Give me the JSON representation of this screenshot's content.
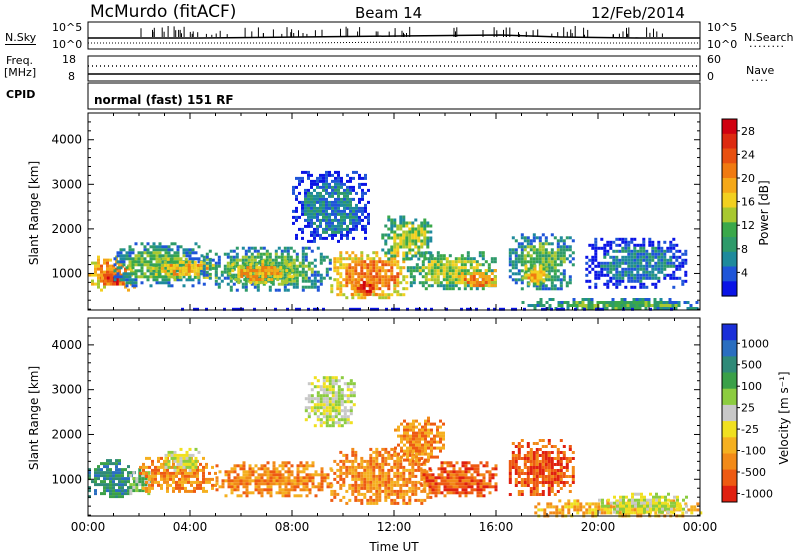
{
  "header": {
    "station": "McMurdo (fitACF)",
    "beam": "Beam 14",
    "date": "12/Feb/2014"
  },
  "strips": {
    "nsky_label": "N.Sky",
    "nsky_ticks": [
      "10^5",
      "10^0"
    ],
    "nsearch_label": "N.Search",
    "nsearch_ticks": [
      "10^5",
      "10^0"
    ],
    "freq_label": "Freq.",
    "freq_unit": "[MHz]",
    "freq_ticks": [
      "18",
      "8"
    ],
    "nave_label": "Nave",
    "nave_ticks": [
      "60",
      "0"
    ],
    "cpid_label": "CPID",
    "cpid_value": "normal (fast) 151 RF"
  },
  "chart_data": [
    {
      "type": "heatmap",
      "name": "power-panel",
      "ylabel": "Slant Range [km]",
      "ylim": [
        180,
        4600
      ],
      "yticks": [
        "1000",
        "2000",
        "3000",
        "4000"
      ],
      "ytick_values": [
        1000,
        2000,
        3000,
        4000
      ],
      "xlim": [
        0,
        24
      ],
      "colorbar": {
        "label": "Power [dB]",
        "ticks": [
          "4",
          "8",
          "12",
          "16",
          "20",
          "24",
          "28"
        ],
        "tick_values": [
          4,
          8,
          12,
          16,
          20,
          24,
          28
        ],
        "range": [
          0,
          30
        ],
        "colors": [
          "#0a14e6",
          "#1f55d8",
          "#1e8a9c",
          "#2e9a6a",
          "#3aa84a",
          "#a8c830",
          "#f2d020",
          "#f5a818",
          "#f07a10",
          "#e85010",
          "#dd2a10",
          "#d00010"
        ]
      },
      "regions": [
        {
          "t0": 0.0,
          "t1": 1.8,
          "r0": 650,
          "r1": 1400,
          "level": 22
        },
        {
          "t0": 0.5,
          "t1": 1.4,
          "r0": 750,
          "r1": 1000,
          "level": 28
        },
        {
          "t0": 1.0,
          "t1": 4.5,
          "r0": 700,
          "r1": 1700,
          "level": 10
        },
        {
          "t0": 2.5,
          "t1": 5.0,
          "r0": 900,
          "r1": 1350,
          "level": 18
        },
        {
          "t0": 4.5,
          "t1": 9.5,
          "r0": 650,
          "r1": 1600,
          "level": 12
        },
        {
          "t0": 5.5,
          "t1": 8.0,
          "r0": 800,
          "r1": 1300,
          "level": 20
        },
        {
          "t0": 8.0,
          "t1": 11.0,
          "r0": 1700,
          "r1": 3300,
          "level": 6
        },
        {
          "t0": 9.5,
          "t1": 12.5,
          "r0": 450,
          "r1": 1500,
          "level": 22
        },
        {
          "t0": 10.3,
          "t1": 11.3,
          "r0": 550,
          "r1": 900,
          "level": 28
        },
        {
          "t0": 11.5,
          "t1": 13.5,
          "r0": 1300,
          "r1": 2300,
          "level": 14
        },
        {
          "t0": 12.5,
          "t1": 16.0,
          "r0": 650,
          "r1": 1500,
          "level": 14
        },
        {
          "t0": 14.5,
          "t1": 16.0,
          "r0": 700,
          "r1": 1100,
          "level": 22
        },
        {
          "t0": 16.5,
          "t1": 19.0,
          "r0": 650,
          "r1": 1900,
          "level": 10
        },
        {
          "t0": 17.0,
          "t1": 18.0,
          "r0": 750,
          "r1": 1200,
          "level": 20
        },
        {
          "t0": 17.0,
          "t1": 24.0,
          "r0": 190,
          "r1": 450,
          "level": 12
        },
        {
          "t0": 19.5,
          "t1": 23.5,
          "r0": 700,
          "r1": 1800,
          "level": 6
        },
        {
          "t0": 0.0,
          "t1": 24.0,
          "r0": 180,
          "r1": 230,
          "level": 4
        }
      ]
    },
    {
      "type": "heatmap",
      "name": "velocity-panel",
      "ylabel": "Slant Range [km]",
      "ylim": [
        180,
        4600
      ],
      "yticks": [
        "1000",
        "2000",
        "3000",
        "4000"
      ],
      "ytick_values": [
        1000,
        2000,
        3000,
        4000
      ],
      "xlim": [
        0,
        24
      ],
      "xticks": [
        "00:00",
        "04:00",
        "08:00",
        "12:00",
        "16:00",
        "20:00",
        "00:00"
      ],
      "xtick_values": [
        0,
        4,
        8,
        12,
        16,
        20,
        24
      ],
      "xlabel": "Time UT",
      "colorbar": {
        "label": "Velocity [m s⁻¹]",
        "ticks": [
          "1000",
          "500",
          "100",
          "25",
          "-25",
          "-100",
          "-500",
          "-1000"
        ],
        "colors": [
          "#1a2fd8",
          "#2a6ec0",
          "#2f8a78",
          "#3aa048",
          "#8ccc40",
          "#c8c8c8",
          "#f0e020",
          "#f5b020",
          "#f28a18",
          "#ee5a12",
          "#e02010"
        ]
      },
      "regions": [
        {
          "t0": 0.0,
          "t1": 1.8,
          "r0": 600,
          "r1": 1450,
          "class": 2
        },
        {
          "t0": 1.5,
          "t1": 2.5,
          "r0": 700,
          "r1": 1250,
          "class": 4
        },
        {
          "t0": 2.0,
          "t1": 5.0,
          "r0": 700,
          "r1": 1500,
          "class": 8
        },
        {
          "t0": 3.0,
          "t1": 4.3,
          "r0": 1200,
          "r1": 1700,
          "class": 5
        },
        {
          "t0": 5.0,
          "t1": 9.5,
          "r0": 650,
          "r1": 1400,
          "class": 8
        },
        {
          "t0": 8.5,
          "t1": 10.5,
          "r0": 2200,
          "r1": 3300,
          "class": 5
        },
        {
          "t0": 9.5,
          "t1": 13.5,
          "r0": 450,
          "r1": 1700,
          "class": 8
        },
        {
          "t0": 12.0,
          "t1": 14.0,
          "r0": 1400,
          "r1": 2400,
          "class": 8
        },
        {
          "t0": 13.0,
          "t1": 16.0,
          "r0": 650,
          "r1": 1400,
          "class": 9
        },
        {
          "t0": 16.5,
          "t1": 19.0,
          "r0": 650,
          "r1": 1900,
          "class": 9
        },
        {
          "t0": 17.5,
          "t1": 24.0,
          "r0": 200,
          "r1": 550,
          "class": 7
        },
        {
          "t0": 20.0,
          "t1": 23.5,
          "r0": 250,
          "r1": 700,
          "class": 5
        }
      ]
    }
  ],
  "colors": {
    "axis": "#000000",
    "background": "#ffffff"
  }
}
